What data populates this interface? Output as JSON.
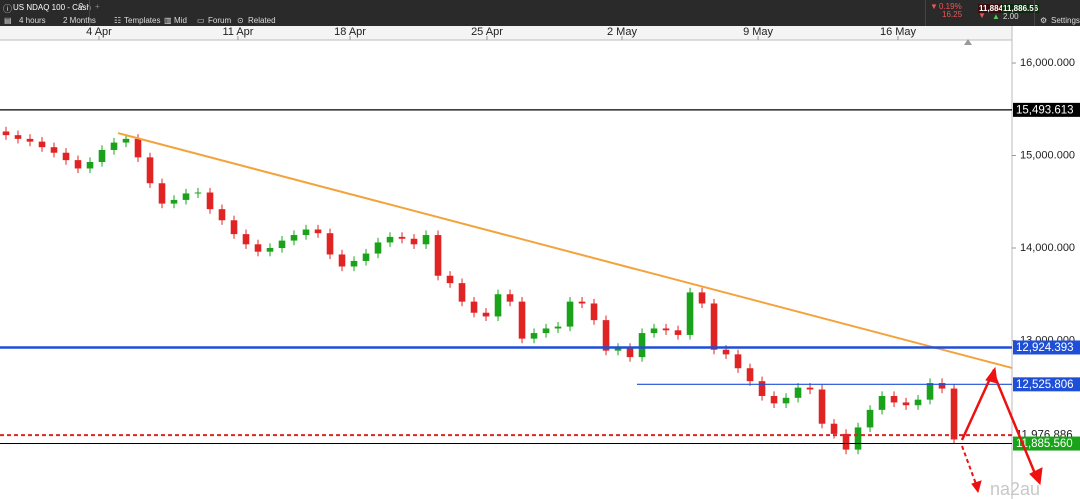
{
  "toolbar": {
    "instrument": "US NDAQ 100 - Cash",
    "timeframe": "4 hours",
    "range": "2 Months",
    "buttons": [
      "Templates",
      "Mid",
      "Forum",
      "Related",
      "Settings"
    ],
    "change_pct": "0.19%",
    "change": "16.25",
    "sell": "11,884.56",
    "spread": "2.00",
    "buy": "11,886.56"
  },
  "watermark": "na2au",
  "chart_data": {
    "type": "candlestick",
    "up_color": "#1aa31a",
    "down_color": "#e02424",
    "xlim": [
      -0.5,
      83.83
    ],
    "xticks": [
      {
        "value": 7.75,
        "label": "4 Apr"
      },
      {
        "value": 19.33,
        "label": "11 Apr"
      },
      {
        "value": 28.67,
        "label": "18 Apr"
      },
      {
        "value": 40.08,
        "label": "25 Apr"
      },
      {
        "value": 51.33,
        "label": "2 May"
      },
      {
        "value": 62.67,
        "label": "9 May"
      },
      {
        "value": 74.33,
        "label": "16 May"
      }
    ],
    "ylim": [
      11286,
      16249
    ],
    "yticks": [
      {
        "value": 16000,
        "label": "16,000.000"
      },
      {
        "value": 15000,
        "label": "15,000.000"
      },
      {
        "value": 14000,
        "label": "14,000.000"
      },
      {
        "value": 13000,
        "label": "13,000.000"
      }
    ],
    "open": [
      15260,
      15220,
      15180,
      15150,
      15090,
      15030,
      14950,
      14860,
      14930,
      15060,
      15140,
      15180,
      14980,
      14700,
      14480,
      14520,
      14590,
      14600,
      14420,
      14300,
      14150,
      14040,
      13960,
      14000,
      14080,
      14140,
      14200,
      14160,
      13930,
      13800,
      13860,
      13940,
      14060,
      14120,
      14100,
      14040,
      14140,
      13700,
      13620,
      13420,
      13300,
      13260,
      13500,
      13420,
      13020,
      13080,
      13130,
      13150,
      13420,
      13400,
      13220,
      12890,
      12920,
      12820,
      13080,
      13130,
      13110,
      13060,
      13520,
      13400,
      12900,
      12850,
      12700,
      12560,
      12400,
      12320,
      12380,
      12490,
      12470,
      12100,
      11990,
      11820,
      12060,
      12250,
      12400,
      12330,
      12300,
      12360,
      12540,
      12480
    ],
    "high": [
      15310,
      15270,
      15230,
      15200,
      15140,
      15080,
      15000,
      14980,
      15110,
      15190,
      15230,
      15230,
      15030,
      14750,
      14570,
      14640,
      14650,
      14650,
      14470,
      14350,
      14200,
      14090,
      14050,
      14130,
      14190,
      14250,
      14250,
      14210,
      13980,
      13910,
      13990,
      14110,
      14170,
      14170,
      14150,
      14190,
      14190,
      13750,
      13670,
      13470,
      13350,
      13550,
      13550,
      13470,
      13130,
      13180,
      13200,
      13470,
      13470,
      13450,
      13270,
      12970,
      12970,
      13130,
      13180,
      13180,
      13160,
      13570,
      13570,
      13450,
      12950,
      12900,
      12750,
      12610,
      12450,
      12430,
      12540,
      12540,
      12520,
      12150,
      12040,
      12110,
      12300,
      12450,
      12450,
      12380,
      12410,
      12590,
      12590,
      12530
    ],
    "low": [
      15170,
      15130,
      15100,
      15040,
      14980,
      14900,
      14810,
      14810,
      14880,
      15010,
      15090,
      14930,
      14650,
      14430,
      14430,
      14470,
      14540,
      14370,
      14250,
      14100,
      13990,
      13910,
      13910,
      13950,
      14030,
      14090,
      14110,
      13880,
      13750,
      13750,
      13810,
      13890,
      14010,
      14050,
      13990,
      13990,
      13650,
      13570,
      13370,
      13250,
      13210,
      13210,
      13370,
      12970,
      12970,
      13030,
      13080,
      13100,
      13350,
      13170,
      12840,
      12840,
      12770,
      12770,
      13030,
      13060,
      13010,
      13010,
      13350,
      12850,
      12800,
      12650,
      12510,
      12350,
      12270,
      12270,
      12330,
      12420,
      12050,
      11940,
      11770,
      11770,
      12010,
      12200,
      12280,
      12250,
      12250,
      12310,
      12430,
      11880
    ],
    "close": [
      15220,
      15180,
      15150,
      15090,
      15030,
      14950,
      14860,
      14930,
      15060,
      15140,
      15180,
      14980,
      14700,
      14480,
      14520,
      14590,
      14600,
      14420,
      14300,
      14150,
      14040,
      13960,
      14000,
      14080,
      14140,
      14200,
      14160,
      13930,
      13800,
      13860,
      13940,
      14060,
      14120,
      14100,
      14040,
      14140,
      13700,
      13620,
      13420,
      13300,
      13260,
      13500,
      13420,
      13020,
      13080,
      13130,
      13150,
      13420,
      13400,
      13220,
      12890,
      12920,
      12820,
      13080,
      13130,
      13110,
      13060,
      13520,
      13400,
      12900,
      12850,
      12700,
      12560,
      12400,
      12320,
      12380,
      12490,
      12470,
      12100,
      11990,
      11820,
      12060,
      12250,
      12400,
      12330,
      12300,
      12360,
      12540,
      12480,
      11930
    ],
    "trendline": {
      "color": "#f4a23c",
      "x": [
        9.33,
        83.83
      ],
      "y": [
        15243,
        12703
      ]
    },
    "levels": [
      {
        "value": 15493.613,
        "label": "15,493.613",
        "color": "#000000",
        "width": 1.2,
        "label_bg": "#000000",
        "label_color": "#ffffff"
      },
      {
        "value": 12924.393,
        "label": "12,924.393",
        "color": "#1f4fd6",
        "width": 2.5,
        "label_bg": "#1f4fd6",
        "label_color": "#ffffff"
      },
      {
        "value": 12525.806,
        "label": "12,525.806",
        "color": "#1f4fd6",
        "width": 1.2,
        "from": 52.58,
        "label_bg": "#1f4fd6",
        "label_color": "#ffffff"
      },
      {
        "value": 11976.886,
        "label": "11,976.886",
        "color": "#e02424",
        "width": 2,
        "dashed": true,
        "label_bg": "#ffffff",
        "label_color": "#222222"
      },
      {
        "value": 11885.56,
        "label": "11,885.560",
        "color": "#000000",
        "width": 1,
        "label_bg": "#1aa31a",
        "label_color": "#ffffff"
      }
    ]
  }
}
